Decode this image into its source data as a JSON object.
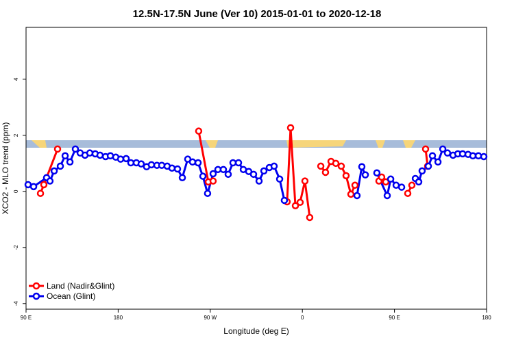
{
  "chart_data": {
    "type": "line",
    "title": "12.5N-17.5N June (Ver 10)   2015-01-01 to 2020-12-18",
    "x_label": "Longitude (deg E)",
    "y_label": "XCO2 - MLO trend (ppm)",
    "xlim": [
      90,
      540
    ],
    "xticks": [
      {
        "value": 90,
        "label": "90 E"
      },
      180,
      {
        "value": 270,
        "label": "90 W"
      },
      {
        "value": 360,
        "label": "0"
      },
      {
        "value": 450,
        "label": "90 E"
      },
      {
        "value": 540,
        "label": "180"
      }
    ],
    "ylim": [
      -4.2,
      5.85
    ],
    "yticks": [
      -4,
      -2,
      0,
      2,
      4
    ],
    "legend": "bottom-left",
    "series": [
      {
        "name": "Land (Nadir&Glint)",
        "color": "#ff0000",
        "x": [
          104.1,
          107.4,
          120.8,
          null,
          258.7,
          268.1,
          272.8,
          null,
          345.1,
          348.5,
          353.2,
          357.8,
          362.5,
          367.2,
          null,
          378.0,
          382.6,
          388.0,
          392.7,
          398.0,
          402.7,
          407.4,
          411.4,
          null,
          434.8,
          437.5,
          441.5,
          null,
          463.0,
          467.0,
          null,
          480.4,
          482.4
        ],
        "values": [
          -0.07,
          0.24,
          1.51,
          null,
          2.15,
          0.34,
          0.37,
          null,
          -0.37,
          2.27,
          -0.51,
          -0.39,
          0.37,
          -0.93,
          null,
          0.9,
          0.68,
          1.07,
          1.0,
          0.9,
          0.56,
          -0.1,
          0.22,
          null,
          0.37,
          0.51,
          0.34,
          null,
          -0.07,
          0.22,
          null,
          1.51,
          0.9
        ]
      },
      {
        "name": "Ocean (Glint)",
        "color": "#0000ee",
        "x": [
          92.0,
          97.4,
          110.1,
          113.4,
          117.5,
          123.5,
          128.2,
          132.9,
          138.2,
          142.9,
          147.6,
          152.3,
          157.6,
          162.3,
          167.7,
          172.4,
          177.7,
          182.4,
          187.8,
          192.4,
          197.8,
          202.5,
          207.8,
          212.5,
          217.9,
          222.6,
          227.9,
          232.6,
          238.0,
          242.7,
          248.0,
          252.7,
          258.1,
          262.8,
          267.4,
          272.8,
          277.5,
          282.8,
          287.5,
          292.2,
          297.6,
          302.3,
          307.6,
          312.3,
          317.7,
          322.4,
          327.7,
          332.4,
          337.8,
          342.4,
          null,
          413.4,
          418.1,
          421.5,
          null,
          432.8,
          442.9,
          446.3,
          451.6,
          457.0,
          null,
          470.4,
          473.7,
          477.0,
          483.1,
          487.1,
          492.5,
          497.2,
          501.8,
          507.2,
          511.9,
          516.6,
          521.9,
          526.6,
          532.0,
          537.3
        ],
        "values": [
          0.24,
          0.17,
          0.49,
          0.37,
          0.73,
          0.9,
          1.27,
          1.05,
          1.51,
          1.37,
          1.29,
          1.37,
          1.34,
          1.29,
          1.24,
          1.27,
          1.22,
          1.15,
          1.17,
          1.02,
          1.02,
          0.98,
          0.88,
          0.95,
          0.93,
          0.93,
          0.9,
          0.83,
          0.8,
          0.49,
          1.15,
          1.05,
          1.02,
          0.54,
          -0.07,
          0.63,
          0.78,
          0.78,
          0.61,
          1.02,
          1.02,
          0.78,
          0.71,
          0.61,
          0.37,
          0.73,
          0.85,
          0.9,
          0.44,
          -0.32,
          null,
          -0.15,
          0.88,
          0.59,
          null,
          0.66,
          -0.15,
          0.44,
          0.22,
          0.15,
          null,
          0.46,
          0.34,
          0.73,
          0.9,
          1.27,
          1.05,
          1.51,
          1.37,
          1.29,
          1.34,
          1.34,
          1.32,
          1.27,
          1.27,
          1.24
        ]
      }
    ]
  }
}
